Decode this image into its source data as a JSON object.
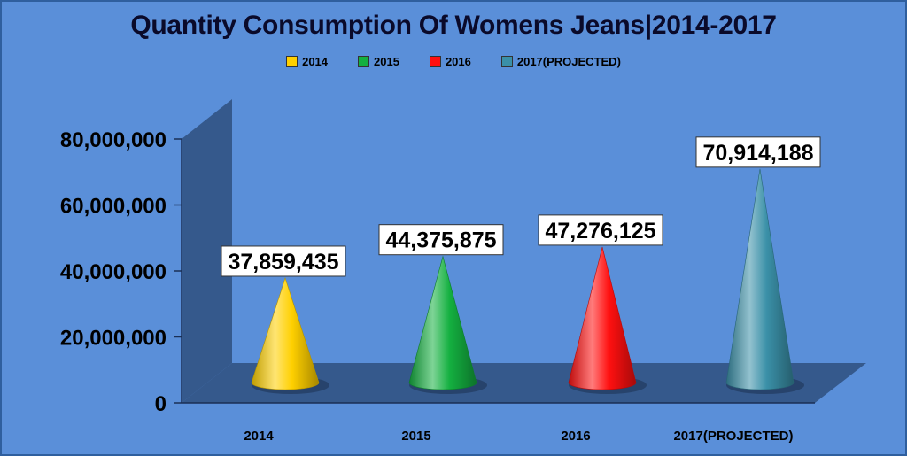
{
  "chart_data": {
    "type": "bar",
    "title": "Quantity Consumption Of Womens Jeans|2014-2017",
    "categories": [
      "2014",
      "2015",
      "2016",
      "2017(PROJECTED)"
    ],
    "series": [
      {
        "name": "2014",
        "values": [
          37859435,
          null,
          null,
          null
        ]
      },
      {
        "name": "2015",
        "values": [
          null,
          44375875,
          null,
          null
        ]
      },
      {
        "name": "2016",
        "values": [
          null,
          null,
          47276125,
          null
        ]
      },
      {
        "name": "2017(PROJECTED)",
        "values": [
          null,
          null,
          null,
          70914188
        ]
      }
    ],
    "values": [
      37859435,
      44375875,
      47276125,
      70914188
    ],
    "data_labels": [
      "37,859,435",
      "44,375,875",
      "47,276,125",
      "70,914,188"
    ],
    "yticks": [
      "0",
      "20,000,000",
      "40,000,000",
      "60,000,000",
      "80,000,000"
    ],
    "ylim": [
      0,
      80000000
    ],
    "legend_position": "top-center",
    "grid": false,
    "colors": [
      "#ffd000",
      "#14b040",
      "#ff1010",
      "#3a90a8"
    ]
  }
}
